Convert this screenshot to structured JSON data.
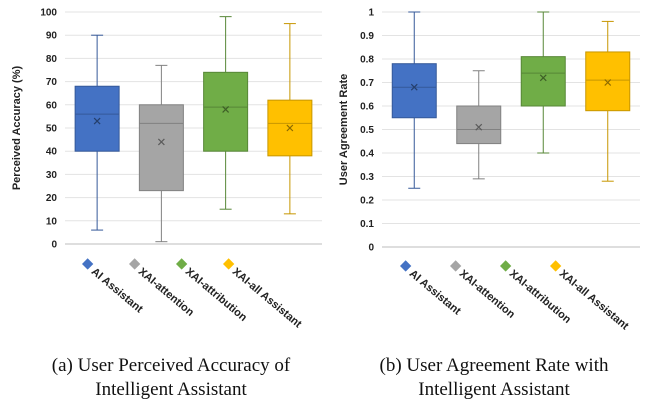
{
  "colors": {
    "AI Assistant": "#4472C4",
    "XAI-attention": "#A5A5A5",
    "XAI-attribution": "#70AD47",
    "XAI-all Assistant": "#FFC000"
  },
  "chart_data": [
    {
      "type": "box",
      "caption": "(a) User Perceived Accuracy of Intelligent Assistant",
      "ylabel": "Perceived Accuracy (%)",
      "xlabel": "",
      "ylim": [
        0,
        100
      ],
      "yticks": [
        "0",
        "10",
        "20",
        "30",
        "40",
        "50",
        "60",
        "70",
        "80",
        "90",
        "100"
      ],
      "grid": true,
      "legend_placement": "bottom",
      "series": [
        {
          "name": "AI Assistant",
          "min": 6,
          "q1": 40,
          "median": 56,
          "q3": 68,
          "max": 90,
          "mean": 53
        },
        {
          "name": "XAI-attention",
          "min": 1,
          "q1": 23,
          "median": 52,
          "q3": 60,
          "max": 77,
          "mean": 44
        },
        {
          "name": "XAI-attribution",
          "min": 15,
          "q1": 40,
          "median": 59,
          "q3": 74,
          "max": 98,
          "mean": 58
        },
        {
          "name": "XAI-all Assistant",
          "min": 13,
          "q1": 38,
          "median": 52,
          "q3": 62,
          "max": 95,
          "mean": 50
        }
      ]
    },
    {
      "type": "box",
      "caption": "(b) User Agreement Rate with Intelligent Assistant",
      "ylabel": "User Agreement Rate",
      "xlabel": "",
      "ylim": [
        0,
        1
      ],
      "yticks": [
        "0",
        "0.1",
        "0.2",
        "0.3",
        "0.4",
        "0.5",
        "0.6",
        "0.7",
        "0.8",
        "0.9",
        "1"
      ],
      "grid": true,
      "legend_placement": "bottom",
      "series": [
        {
          "name": "AI Assistant",
          "min": 0.25,
          "q1": 0.55,
          "median": 0.68,
          "q3": 0.78,
          "max": 1.0,
          "mean": 0.68
        },
        {
          "name": "XAI-attention",
          "min": 0.29,
          "q1": 0.44,
          "median": 0.5,
          "q3": 0.6,
          "max": 0.75,
          "mean": 0.51
        },
        {
          "name": "XAI-attribution",
          "min": 0.4,
          "q1": 0.6,
          "median": 0.74,
          "q3": 0.81,
          "max": 1.0,
          "mean": 0.72
        },
        {
          "name": "XAI-all Assistant",
          "min": 0.28,
          "q1": 0.58,
          "median": 0.71,
          "q3": 0.83,
          "max": 0.96,
          "mean": 0.7
        }
      ]
    }
  ]
}
